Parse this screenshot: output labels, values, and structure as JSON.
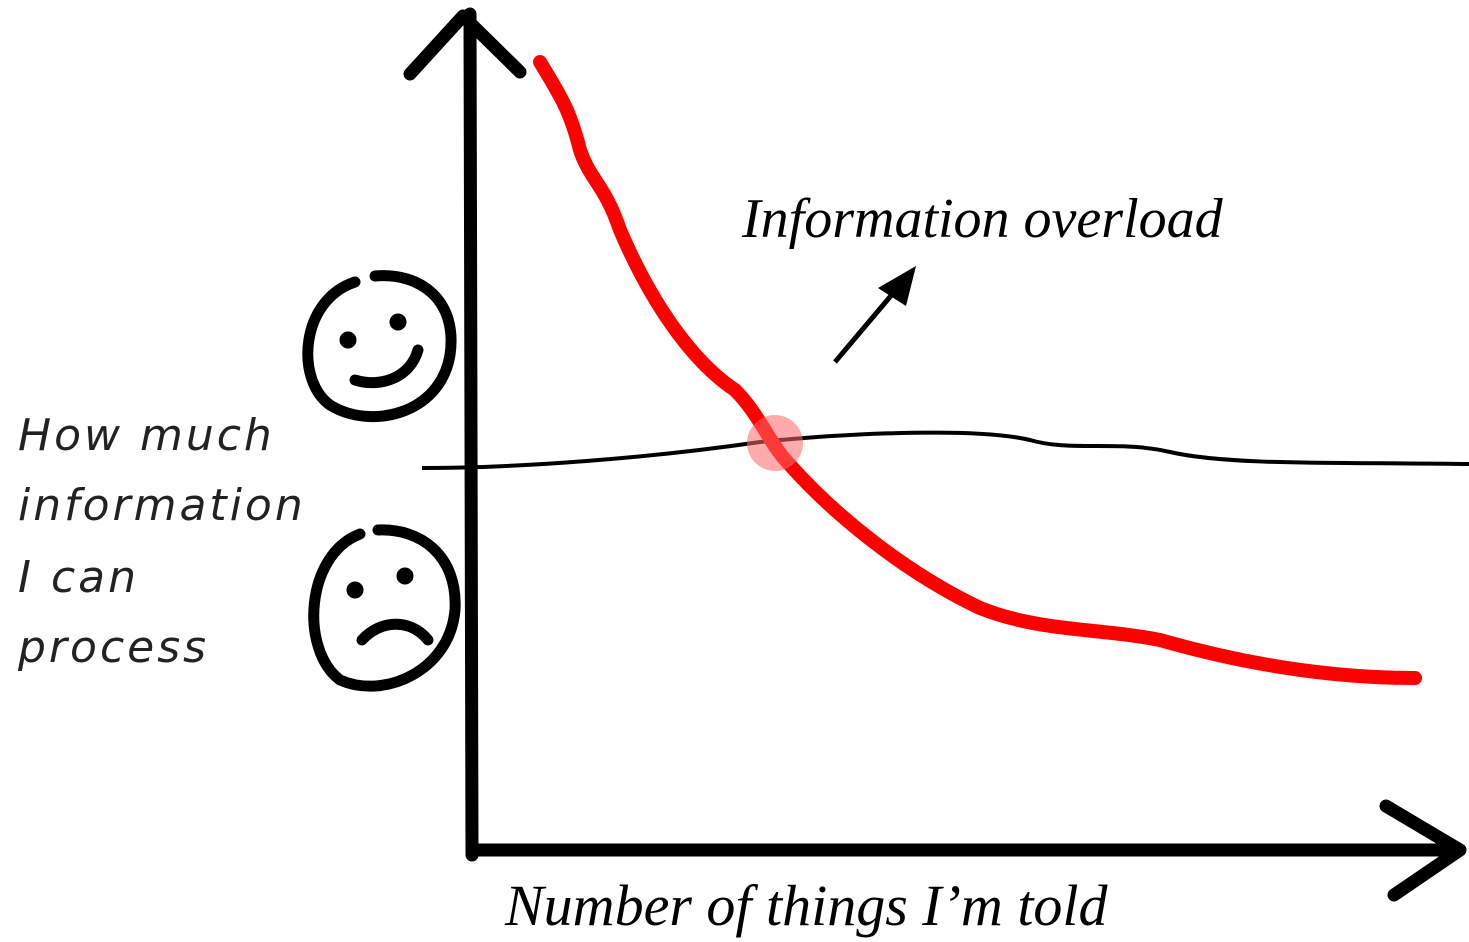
{
  "annotation": "Information overload",
  "x_axis_label": "Number of things I’m told",
  "y_axis_label": [
    "How much",
    "information",
    "I can",
    "process"
  ]
}
